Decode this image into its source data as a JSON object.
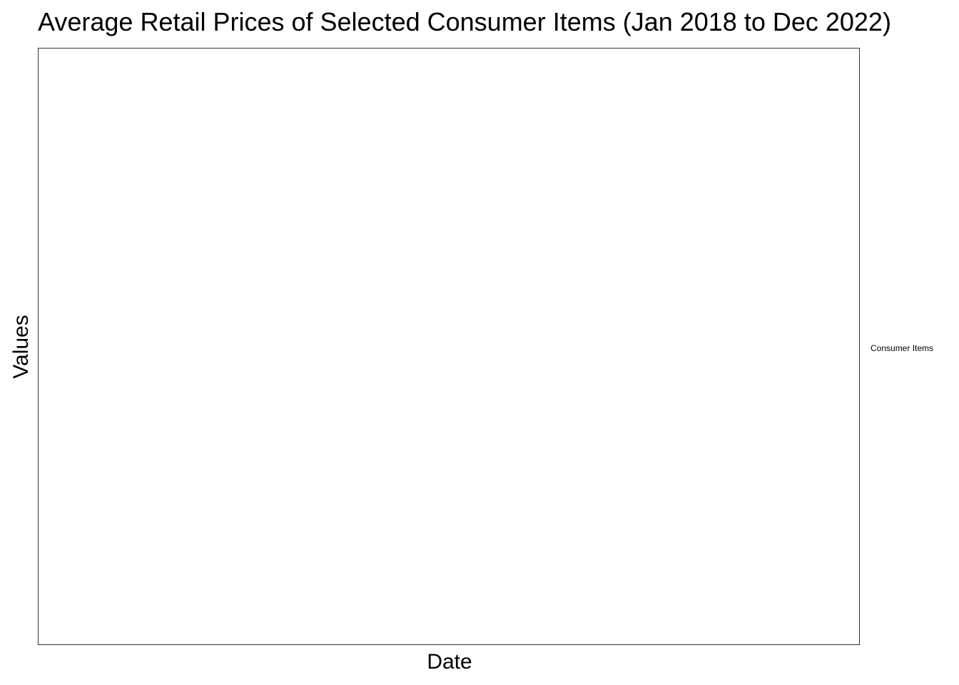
{
  "chart_data": {
    "type": "line",
    "title": "Average Retail Prices of Selected Consumer Items (Jan 2018 to Dec 2022)",
    "xlabel": "Date",
    "ylabel": "Values",
    "legend_title": "Consumer Items",
    "legend_position": "right",
    "series": [],
    "grid": false,
    "colors": {
      "panel_border": "#333333",
      "background": "#ffffff",
      "text": "#000000"
    }
  }
}
